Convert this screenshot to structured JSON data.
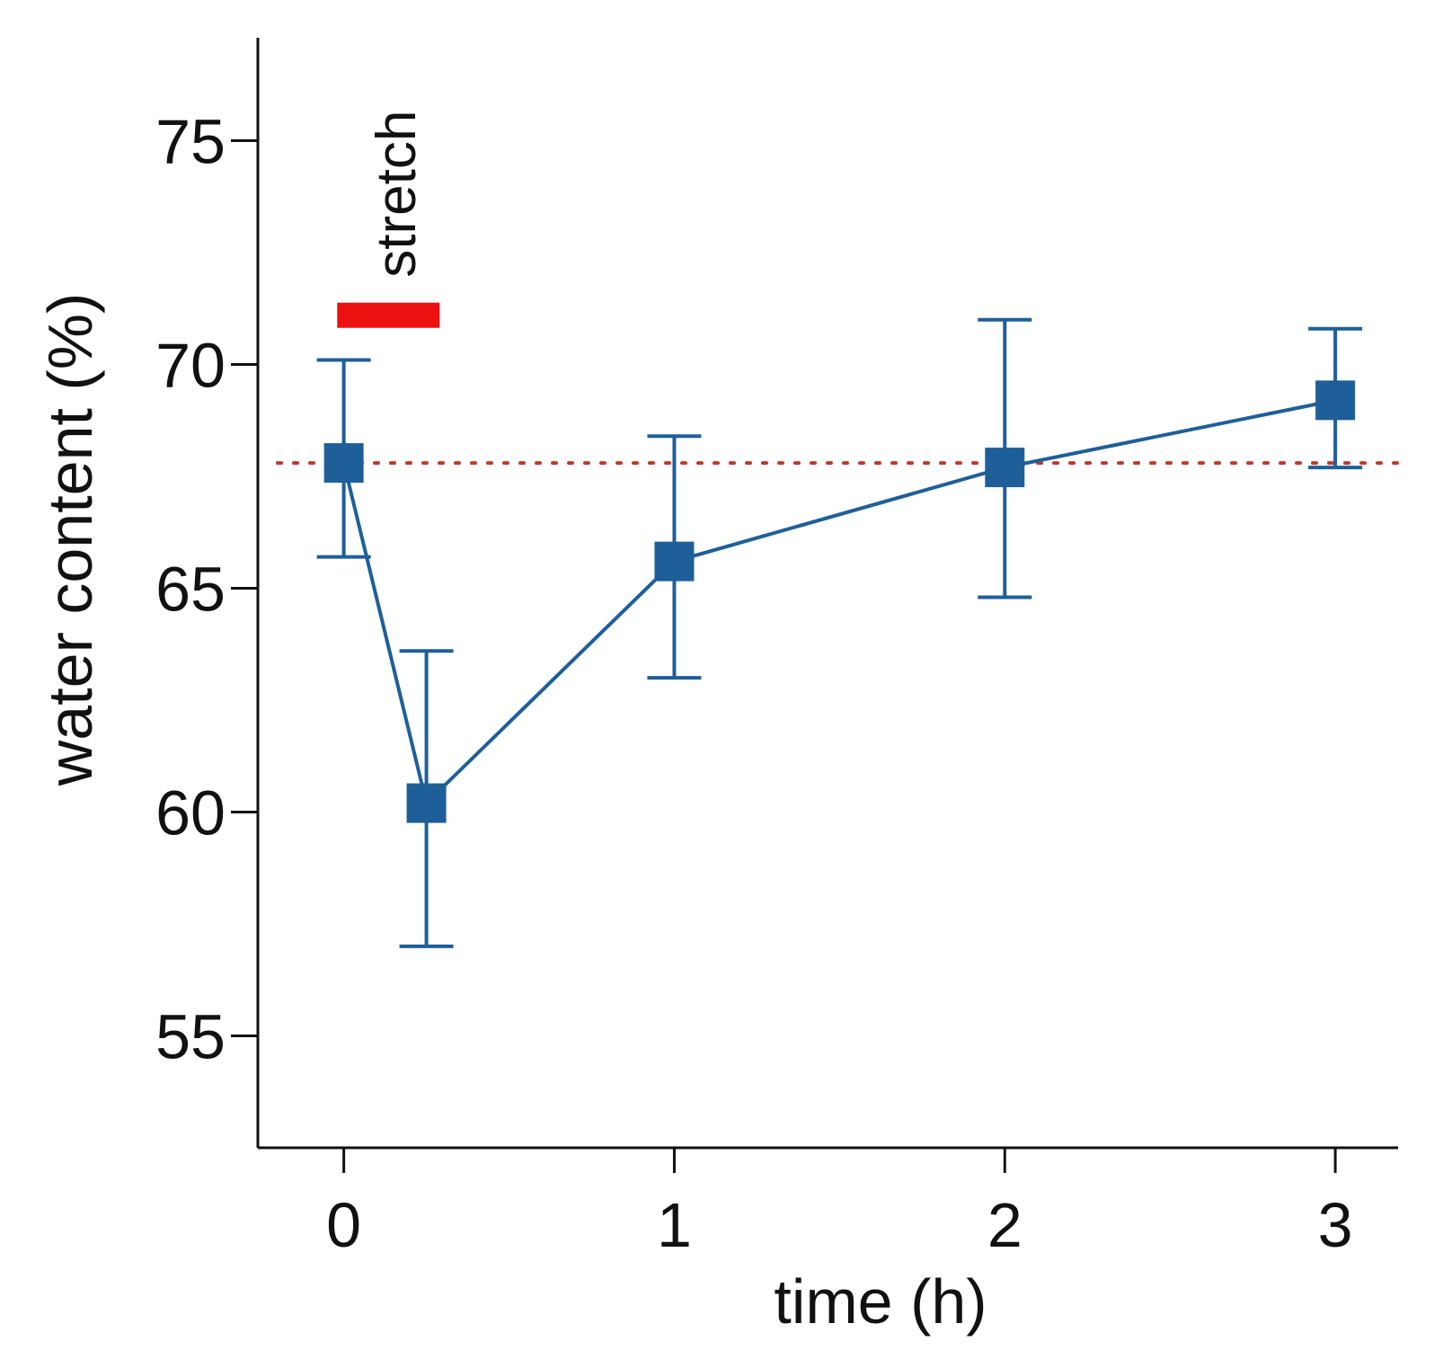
{
  "chart_data": {
    "type": "line",
    "title": "",
    "xlabel": "time (h)",
    "ylabel": "water content (%)",
    "xlim": [
      -0.26,
      3.19
    ],
    "ylim": [
      52.5,
      77.3
    ],
    "x_ticks": [
      0,
      1,
      2,
      3
    ],
    "x_tick_labels": [
      "0",
      "1",
      "2",
      "3"
    ],
    "y_ticks": [
      55,
      60,
      65,
      70,
      75
    ],
    "y_tick_labels": [
      "55",
      "60",
      "65",
      "70",
      "75"
    ],
    "grid": false,
    "series": [
      {
        "name": "water content",
        "color": "#1f5f99",
        "marker": "square",
        "points": [
          {
            "x": 0,
            "y": 67.8,
            "err_low": 65.7,
            "err_high": 70.1
          },
          {
            "x": 0.25,
            "y": 60.2,
            "err_low": 57.0,
            "err_high": 63.6
          },
          {
            "x": 1,
            "y": 65.6,
            "err_low": 63.0,
            "err_high": 68.4
          },
          {
            "x": 2,
            "y": 67.7,
            "err_low": 64.8,
            "err_high": 71.0
          },
          {
            "x": 3,
            "y": 69.2,
            "err_low": 67.7,
            "err_high": 70.8
          }
        ]
      }
    ],
    "reference_line": {
      "y": 67.8,
      "style": "dotted",
      "color": "#c0392b"
    },
    "annotation": {
      "text": "stretch",
      "bar_x_start": -0.02,
      "bar_x_end": 0.29,
      "bar_y": 71.1,
      "bar_color": "#ee1111"
    }
  }
}
